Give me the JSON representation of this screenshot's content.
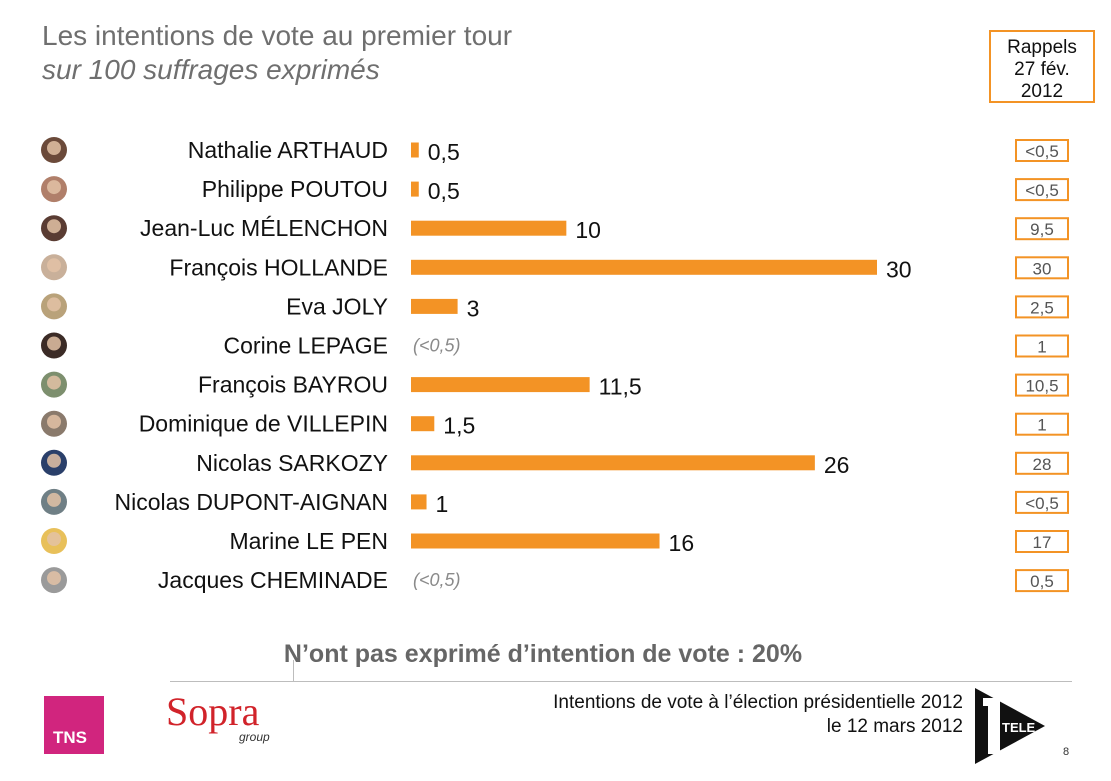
{
  "header": {
    "title": "Les intentions de vote au premier tour",
    "subtitle": "sur 100 suffrages exprimés"
  },
  "rappels": {
    "line1": "Rappels",
    "line2": "27 fév.",
    "line3": "2012"
  },
  "colors": {
    "bar": "#f39325",
    "box_border": "#f39325",
    "title_gray": "#6f6f6f",
    "note_gray": "#8a8a8a",
    "tns_pink": "#d1257e",
    "sopra_red": "#d1232a"
  },
  "chart_data": {
    "type": "bar",
    "orientation": "horizontal",
    "title": "Les intentions de vote au premier tour",
    "subtitle": "sur 100 suffrages exprimés",
    "xlim": [
      0,
      30
    ],
    "grid": false,
    "categories": [
      "Nathalie ARTHAUD",
      "Philippe POUTOU",
      "Jean-Luc MÉLENCHON",
      "François HOLLANDE",
      "Eva JOLY",
      "Corine LEPAGE",
      "François BAYROU",
      "Dominique de VILLEPIN",
      "Nicolas SARKOZY",
      "Nicolas DUPONT-AIGNAN",
      "Marine LE PEN",
      "Jacques CHEMINADE"
    ],
    "values": [
      0.5,
      0.5,
      10,
      30,
      3,
      0,
      11.5,
      1.5,
      26,
      1,
      16,
      0
    ],
    "value_labels": [
      "0,5",
      "0,5",
      "10",
      "30",
      "3",
      "(<0,5)",
      "11,5",
      "1,5",
      "26",
      "1",
      "16",
      "(<0,5)"
    ],
    "rappels_labels": [
      "<0,5",
      "<0,5",
      "9,5",
      "30",
      "2,5",
      "1",
      "10,5",
      "1",
      "28",
      "<0,5",
      "17",
      "0,5"
    ]
  },
  "note": "N’ont pas exprimé d’intention de vote : 20%",
  "footer": {
    "line1": "Intentions de vote à l’élection présidentielle 2012",
    "line2": "le 12 mars 2012",
    "page": "8"
  },
  "logos": {
    "tns": "TNS",
    "sopra": "Sopra",
    "sopra_sub": "group",
    "itele": "TELE"
  }
}
